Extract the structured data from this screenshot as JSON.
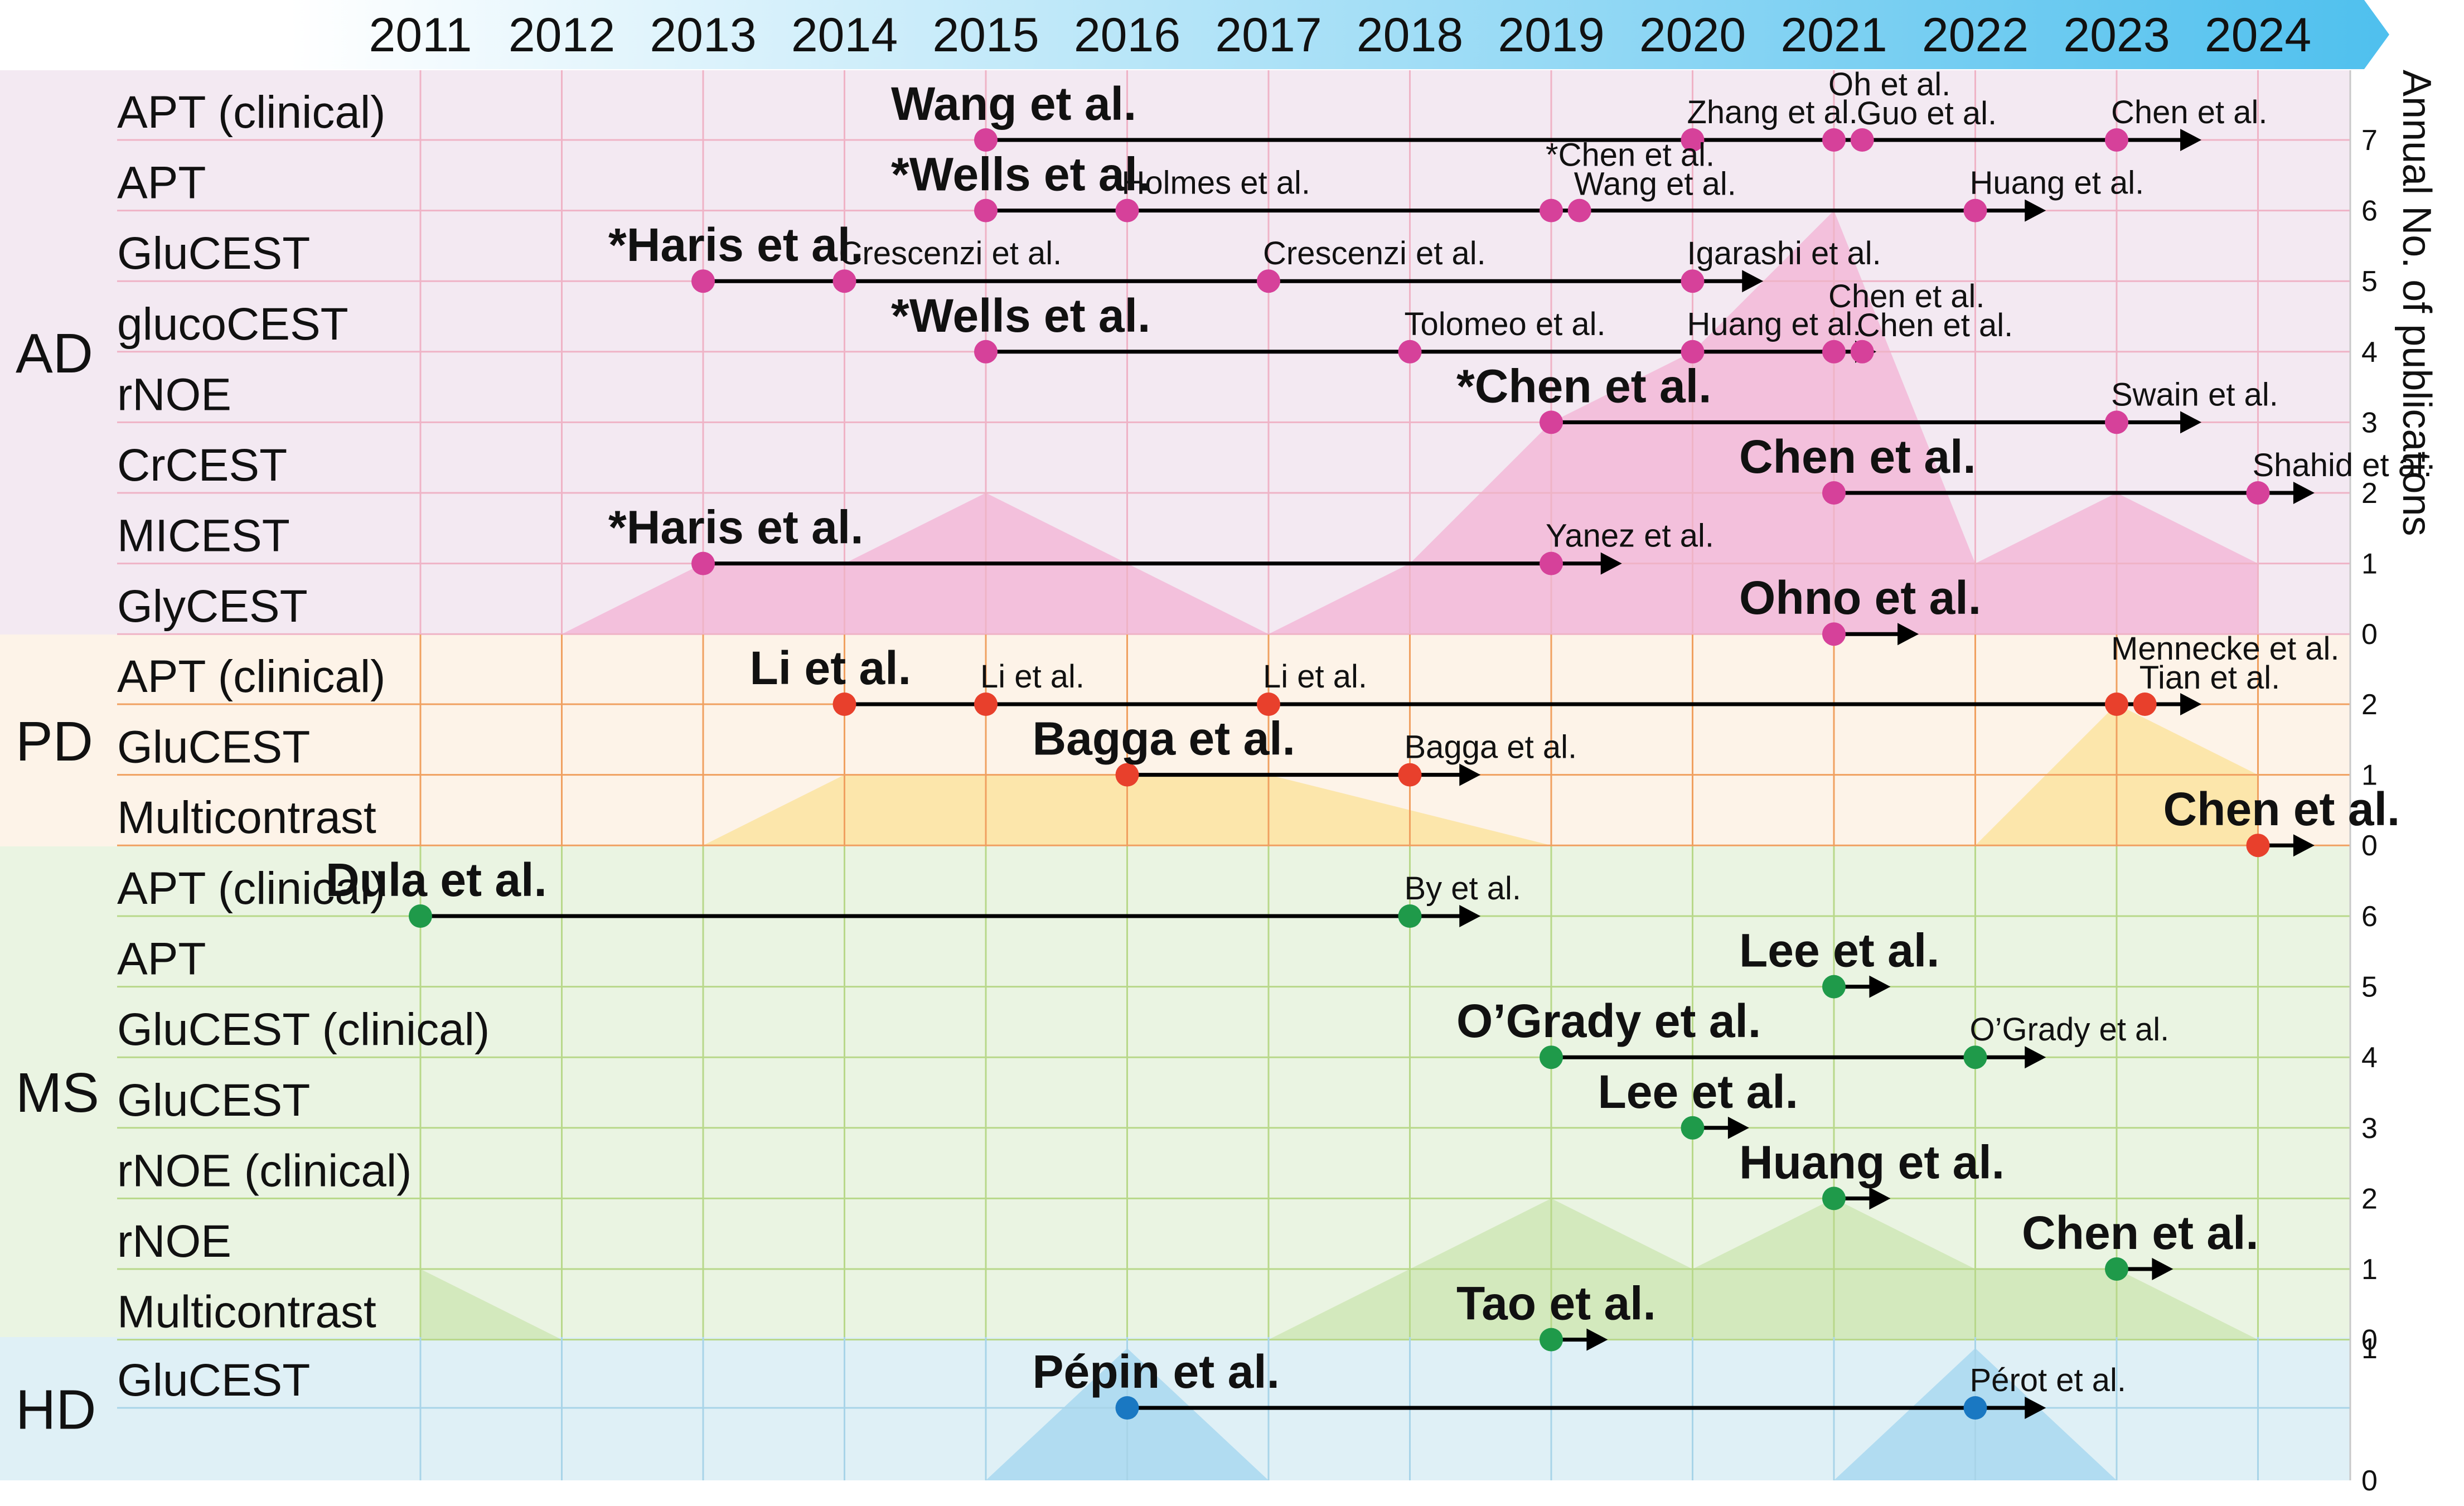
{
  "chart_data": {
    "type": "timeline",
    "years": [
      2011,
      2012,
      2013,
      2014,
      2015,
      2016,
      2017,
      2018,
      2019,
      2020,
      2021,
      2022,
      2023,
      2024
    ],
    "right_axis_label": "Annual No. of publications",
    "colors": {
      "AD": {
        "bg": "#f3e9f2",
        "grid": "#efb3c6",
        "marker": "#d6419a",
        "area": "#f2b8d8"
      },
      "PD": {
        "bg": "#fdf3e8",
        "grid": "#f0a060",
        "marker": "#e8402c",
        "area": "#fbe3a0"
      },
      "MS": {
        "bg": "#eaf4e2",
        "grid": "#b8d88a",
        "marker": "#1f9a4a",
        "area": "#cfe6b6"
      },
      "HD": {
        "bg": "#dff0f6",
        "grid": "#a8d4e8",
        "marker": "#1a78c2",
        "area": "#a9d8f0"
      },
      "banner_start": "#ffffff",
      "banner_end": "#4fc0ee"
    },
    "groups": [
      {
        "name": "AD",
        "publications_per_year": [
          0,
          0,
          1,
          1,
          2,
          1,
          0,
          1,
          3,
          4,
          6,
          1,
          2,
          1
        ],
        "axis_ticks": [
          "7",
          "6",
          "5",
          "4",
          "3",
          "2",
          "1",
          "0"
        ],
        "rows": [
          {
            "label": "APT (clinical)",
            "line": [
              2015,
              2023
            ],
            "arrow_to": 2023.6,
            "pubs": [
              {
                "year": 2015,
                "text": "Wang et al.",
                "bold": true
              },
              {
                "year": 2020,
                "text": "Zhang et al.",
                "bold": false
              },
              {
                "year": 2021,
                "text": "Oh et al.",
                "bold": false
              },
              {
                "year": 2021.2,
                "text": "Guo et al.",
                "bold": false
              },
              {
                "year": 2023,
                "text": "Chen et al.",
                "bold": false
              }
            ]
          },
          {
            "label": "APT",
            "line": [
              2015,
              2022
            ],
            "arrow_to": 2022.5,
            "pubs": [
              {
                "year": 2015,
                "text": "*Wells et al.",
                "bold": true
              },
              {
                "year": 2016,
                "text": "Holmes et al.",
                "bold": false
              },
              {
                "year": 2019,
                "text": "*Chen et al.",
                "bold": false
              },
              {
                "year": 2019.2,
                "text": "Wang et al.",
                "bold": false
              },
              {
                "year": 2022,
                "text": "Huang et al.",
                "bold": false
              }
            ]
          },
          {
            "label": "GluCEST",
            "line": [
              2013,
              2020
            ],
            "arrow_to": 2020.5,
            "pubs": [
              {
                "year": 2013,
                "text": "*Haris et al.",
                "bold": true
              },
              {
                "year": 2014,
                "text": "Crescenzi et al.",
                "bold": false
              },
              {
                "year": 2017,
                "text": "Crescenzi et al.",
                "bold": false
              },
              {
                "year": 2020,
                "text": "Igarashi et al.",
                "bold": false
              }
            ]
          },
          {
            "label": "glucoCEST",
            "line": [
              2015,
              2021.2
            ],
            "arrow_to": 2021.3,
            "pubs": [
              {
                "year": 2015,
                "text": "*Wells et al.",
                "bold": true
              },
              {
                "year": 2018,
                "text": "Tolomeo et al.",
                "bold": false
              },
              {
                "year": 2020,
                "text": "Huang et al.",
                "bold": false
              },
              {
                "year": 2021,
                "text": "Chen et al.",
                "bold": false
              },
              {
                "year": 2021.2,
                "text": "Chen et al.",
                "bold": false
              }
            ]
          },
          {
            "label": "rNOE",
            "line": [
              2019,
              2023
            ],
            "arrow_to": 2023.6,
            "pubs": [
              {
                "year": 2019,
                "text": "*Chen et al.",
                "bold": true
              },
              {
                "year": 2023,
                "text": "Swain et al.",
                "bold": false
              }
            ]
          },
          {
            "label": "CrCEST",
            "line": [
              2021,
              2024
            ],
            "arrow_to": 2024.4,
            "pubs": [
              {
                "year": 2021,
                "text": "Chen et al.",
                "bold": true
              },
              {
                "year": 2024,
                "text": "Shahid et al.",
                "bold": false
              }
            ]
          },
          {
            "label": "MICEST",
            "line": [
              2013,
              2019
            ],
            "arrow_to": 2019.5,
            "pubs": [
              {
                "year": 2013,
                "text": "*Haris et al.",
                "bold": true
              },
              {
                "year": 2019,
                "text": "Yanez et al.",
                "bold": false
              }
            ]
          },
          {
            "label": "GlyCEST",
            "line": [
              2021,
              2021
            ],
            "arrow_to": 2021.6,
            "pubs": [
              {
                "year": 2021,
                "text": "Ohno et al.",
                "bold": true
              }
            ]
          }
        ]
      },
      {
        "name": "PD",
        "publications_per_year": [
          0,
          0,
          0,
          1,
          1,
          1,
          1,
          0.5,
          0,
          0,
          0,
          0,
          2,
          1
        ],
        "axis_ticks": [
          "2",
          "1",
          "0"
        ],
        "rows": [
          {
            "label": "APT (clinical)",
            "line": [
              2014,
              2023.2
            ],
            "arrow_to": 2023.6,
            "pubs": [
              {
                "year": 2014,
                "text": "Li et al.",
                "bold": true
              },
              {
                "year": 2015,
                "text": "Li et al.",
                "bold": false
              },
              {
                "year": 2017,
                "text": "Li et al.",
                "bold": false
              },
              {
                "year": 2023,
                "text": "Mennecke et al.",
                "bold": false
              },
              {
                "year": 2023.2,
                "text": "Tian et al.",
                "bold": false
              }
            ]
          },
          {
            "label": "GluCEST",
            "line": [
              2016,
              2018
            ],
            "arrow_to": 2018.5,
            "pubs": [
              {
                "year": 2016,
                "text": "Bagga et al.",
                "bold": true
              },
              {
                "year": 2018,
                "text": "Bagga et al.",
                "bold": false
              }
            ]
          },
          {
            "label": "Multicontrast",
            "line": [
              2024,
              2024
            ],
            "arrow_to": 2024.4,
            "pubs": [
              {
                "year": 2024,
                "text": "Chen et al.",
                "bold": true
              }
            ]
          }
        ]
      },
      {
        "name": "MS",
        "publications_per_year": [
          1,
          0,
          0,
          0,
          0,
          0,
          0,
          1,
          2,
          1,
          2,
          1,
          1,
          0
        ],
        "axis_ticks": [
          "6",
          "5",
          "4",
          "3",
          "2",
          "1",
          "0"
        ],
        "rows": [
          {
            "label": "APT (clinical)",
            "line": [
              2011,
              2018
            ],
            "arrow_to": 2018.5,
            "pubs": [
              {
                "year": 2011,
                "text": "Dula et al.",
                "bold": true
              },
              {
                "year": 2018,
                "text": "By et al.",
                "bold": false
              }
            ]
          },
          {
            "label": "APT",
            "line": [
              2021,
              2021
            ],
            "arrow_to": 2021.4,
            "pubs": [
              {
                "year": 2021,
                "text": "Lee et al.",
                "bold": true
              }
            ]
          },
          {
            "label": "GluCEST (clinical)",
            "line": [
              2019,
              2022
            ],
            "arrow_to": 2022.5,
            "pubs": [
              {
                "year": 2019,
                "text": "O’Grady et al.",
                "bold": true
              },
              {
                "year": 2022,
                "text": "O’Grady et al.",
                "bold": false
              }
            ]
          },
          {
            "label": "GluCEST",
            "line": [
              2020,
              2020
            ],
            "arrow_to": 2020.4,
            "pubs": [
              {
                "year": 2020,
                "text": "Lee et al.",
                "bold": true
              }
            ]
          },
          {
            "label": "rNOE (clinical)",
            "line": [
              2021,
              2021
            ],
            "arrow_to": 2021.4,
            "pubs": [
              {
                "year": 2021,
                "text": "Huang et al.",
                "bold": true
              }
            ]
          },
          {
            "label": "rNOE",
            "line": [
              2023,
              2023
            ],
            "arrow_to": 2023.4,
            "pubs": [
              {
                "year": 2023,
                "text": "Chen et al.",
                "bold": true
              }
            ]
          },
          {
            "label": "Multicontrast",
            "line": [
              2019,
              2019
            ],
            "arrow_to": 2019.4,
            "pubs": [
              {
                "year": 2019,
                "text": "Tao et al.",
                "bold": true
              }
            ]
          }
        ]
      },
      {
        "name": "HD",
        "publications_per_year": [
          0,
          0,
          0,
          0,
          0,
          1,
          0,
          0,
          0,
          0,
          0,
          1,
          0,
          0
        ],
        "axis_ticks": [
          "1",
          "0"
        ],
        "rows": [
          {
            "label": "GluCEST",
            "line": [
              2016,
              2022
            ],
            "arrow_to": 2022.5,
            "pubs": [
              {
                "year": 2016,
                "text": "Pépin et al.",
                "bold": true
              },
              {
                "year": 2022,
                "text": "Pérot et al.",
                "bold": false
              }
            ]
          }
        ]
      }
    ]
  }
}
